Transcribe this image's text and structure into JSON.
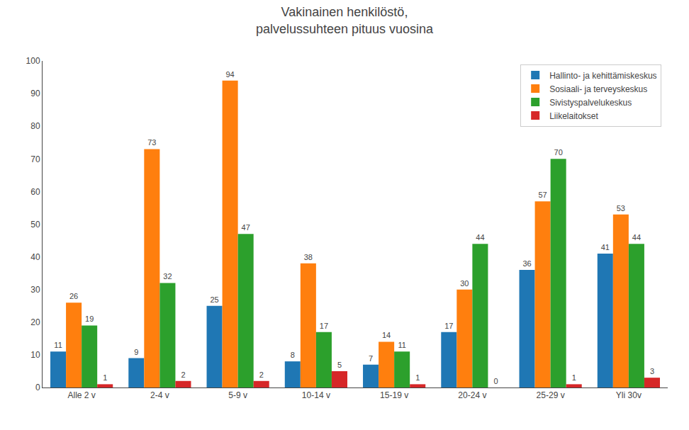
{
  "chart_data": {
    "type": "bar",
    "title": "Vakinainen henkilöstö,\npalvelussuhteen pituus vuosina",
    "categories": [
      "Alle 2 v",
      "2-4 v",
      "5-9 v",
      "10-14 v",
      "15-19 v",
      "20-24 v",
      "25-29 v",
      "Yli 30v"
    ],
    "series": [
      {
        "name": "Hallinto- ja kehittämiskeskus",
        "values": [
          11,
          9,
          25,
          8,
          7,
          17,
          36,
          41
        ]
      },
      {
        "name": "Sosiaali- ja terveyskeskus",
        "values": [
          26,
          73,
          94,
          38,
          14,
          30,
          57,
          53
        ]
      },
      {
        "name": "Sivistyspalvelukeskus",
        "values": [
          19,
          32,
          47,
          17,
          11,
          44,
          70,
          44
        ]
      },
      {
        "name": "Liikelaitokset",
        "values": [
          1,
          2,
          2,
          5,
          1,
          0,
          1,
          3
        ]
      }
    ],
    "ylim": [
      0,
      100
    ],
    "yticks": [
      0,
      10,
      20,
      30,
      40,
      50,
      60,
      70,
      80,
      90,
      100
    ],
    "grid": false,
    "legend": "upper right",
    "data_labels": true
  }
}
